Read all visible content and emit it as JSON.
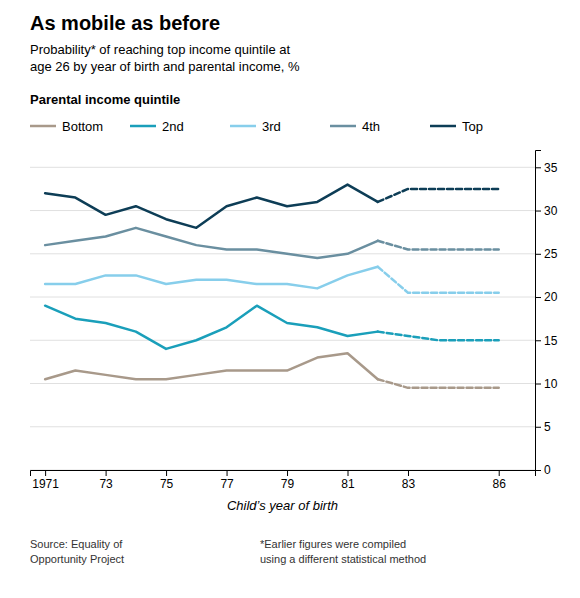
{
  "chart_data": {
    "type": "line",
    "title": "As mobile as before",
    "subtitle": "Probability* of reaching top income quintile at\nage 26 by year of birth and parental income, %",
    "legend_title": "Parental income quintile",
    "xlabel": "Child’s year of birth",
    "annotations": [
      "Source: Equality of\nOpportunity Project",
      "*Earlier figures were compiled\nusing a different statistical method"
    ],
    "x": [
      1971,
      1972,
      1973,
      1974,
      1975,
      1976,
      1977,
      1978,
      1979,
      1980,
      1981,
      1982,
      1983,
      1984,
      1985,
      1986
    ],
    "xlim": [
      1970.5,
      1987.2
    ],
    "xticks": [
      1971,
      {
        "value": 1973,
        "label": "73"
      },
      {
        "value": 1975,
        "label": "75"
      },
      {
        "value": 1977,
        "label": "77"
      },
      {
        "value": 1979,
        "label": "79"
      },
      {
        "value": 1981,
        "label": "81"
      },
      {
        "value": 1983,
        "label": "83"
      },
      {
        "value": 1986,
        "label": "86"
      }
    ],
    "ylim": [
      0,
      37
    ],
    "yticks": [
      0,
      5,
      10,
      15,
      20,
      25,
      30,
      35
    ],
    "grid": true,
    "legend": "top",
    "series": [
      {
        "name": "Bottom",
        "color": "#a8998a",
        "line_style": "solid",
        "values": [
          10.5,
          11.5,
          11.0,
          10.5,
          10.5,
          11.0,
          11.5,
          11.5,
          11.5,
          13.0,
          13.5,
          10.5,
          null,
          null,
          null,
          null
        ]
      },
      {
        "name": "2nd",
        "color": "#1a9fba",
        "line_style": "solid",
        "values": [
          19.0,
          17.5,
          17.0,
          16.0,
          14.0,
          15.0,
          16.5,
          19.0,
          17.0,
          16.5,
          15.5,
          16.0,
          null,
          null,
          null,
          null
        ]
      },
      {
        "name": "3rd",
        "color": "#87ceeb",
        "line_style": "solid",
        "values": [
          21.5,
          21.5,
          22.5,
          22.5,
          21.5,
          22.0,
          22.0,
          21.5,
          21.5,
          21.0,
          22.5,
          23.5,
          null,
          null,
          null,
          null
        ]
      },
      {
        "name": "4th",
        "color": "#6a8fa0",
        "line_style": "solid",
        "values": [
          26.0,
          26.5,
          27.0,
          28.0,
          27.0,
          26.0,
          25.5,
          25.5,
          25.0,
          24.5,
          25.0,
          26.5,
          null,
          null,
          null,
          null
        ]
      },
      {
        "name": "Top",
        "color": "#0d3d56",
        "line_style": "solid",
        "values": [
          32.0,
          31.5,
          29.5,
          30.5,
          29.0,
          28.0,
          30.5,
          31.5,
          30.5,
          31.0,
          33.0,
          31.0,
          null,
          null,
          null,
          null
        ]
      },
      {
        "name": "Bottom",
        "color": "#a8998a",
        "line_style": "dashed",
        "values": [
          null,
          null,
          null,
          null,
          null,
          null,
          null,
          null,
          null,
          null,
          null,
          10.5,
          9.5,
          9.5,
          9.5,
          9.5
        ]
      },
      {
        "name": "2nd",
        "color": "#1a9fba",
        "line_style": "dashed",
        "values": [
          null,
          null,
          null,
          null,
          null,
          null,
          null,
          null,
          null,
          null,
          null,
          16.0,
          15.5,
          15.0,
          15.0,
          15.0
        ]
      },
      {
        "name": "3rd",
        "color": "#87ceeb",
        "line_style": "dashed",
        "values": [
          null,
          null,
          null,
          null,
          null,
          null,
          null,
          null,
          null,
          null,
          null,
          23.5,
          20.5,
          20.5,
          20.5,
          20.5
        ]
      },
      {
        "name": "4th",
        "color": "#6a8fa0",
        "line_style": "dashed",
        "values": [
          null,
          null,
          null,
          null,
          null,
          null,
          null,
          null,
          null,
          null,
          null,
          26.5,
          25.5,
          25.5,
          25.5,
          25.5
        ]
      },
      {
        "name": "Top",
        "color": "#0d3d56",
        "line_style": "dashed",
        "values": [
          null,
          null,
          null,
          null,
          null,
          null,
          null,
          null,
          null,
          null,
          null,
          31.0,
          32.5,
          32.5,
          32.5,
          32.5
        ]
      }
    ]
  }
}
